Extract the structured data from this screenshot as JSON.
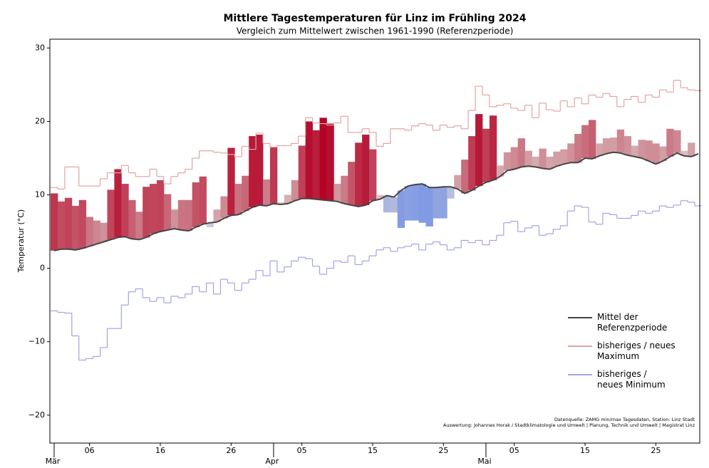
{
  "chart_data": {
    "type": "anomaly-bar",
    "title": "Mittlere Tagestemperaturen für Linz im Frühling 2024",
    "subtitle": "Vergleich zum Mittelwert zwischen 1961-1990 (Referenzperiode)",
    "y_label": "Temperatur (°C)",
    "annotations": [
      "Datenquelle: ZAMG min/max Tagesdaten, Station: Linz Stadt",
      "Auswertung: Johannes Horak / Stadtklimatologie und Umwelt | Planung, Technik und Umwelt | Magistrat Linz"
    ],
    "x": [
      1,
      2,
      3,
      4,
      5,
      6,
      7,
      8,
      9,
      10,
      11,
      12,
      13,
      14,
      15,
      16,
      17,
      18,
      19,
      20,
      21,
      22,
      23,
      24,
      25,
      26,
      27,
      28,
      29,
      30,
      31,
      32,
      33,
      34,
      35,
      36,
      37,
      38,
      39,
      40,
      41,
      42,
      43,
      44,
      45,
      46,
      47,
      48,
      49,
      50,
      51,
      52,
      53,
      54,
      55,
      56,
      57,
      58,
      59,
      60,
      61,
      62,
      63,
      64,
      65,
      66,
      67,
      68,
      69,
      70,
      71,
      72,
      73,
      74,
      75,
      76,
      77,
      78,
      79,
      80,
      81,
      82,
      83,
      84,
      85,
      86,
      87,
      88,
      89,
      90,
      91,
      92
    ],
    "values": [
      10.2,
      9.1,
      9.6,
      8.5,
      9.3,
      7.0,
      6.5,
      6.2,
      10.7,
      13.5,
      11.5,
      9.3,
      7.7,
      11.1,
      11.5,
      12.0,
      10.1,
      8.0,
      9.3,
      9.3,
      11.7,
      12.5,
      5.6,
      8.0,
      9.8,
      16.4,
      11.5,
      12.6,
      18.0,
      18.2,
      12.1,
      16.5,
      9.0,
      10.0,
      12.0,
      16.7,
      20.0,
      18.8,
      20.5,
      19.7,
      11.5,
      12.6,
      14.5,
      17.1,
      18.2,
      16.2,
      10.0,
      7.6,
      7.6,
      5.5,
      6.5,
      6.5,
      6.2,
      5.7,
      6.8,
      6.8,
      9.5,
      12.7,
      14.8,
      18.0,
      21.0,
      19.0,
      20.8,
      14.0,
      15.8,
      16.5,
      17.7,
      16.0,
      15.2,
      16.3,
      15.2,
      15.9,
      16.2,
      17.0,
      18.3,
      19.5,
      20.2,
      17.0,
      17.7,
      17.8,
      18.9,
      18.0,
      16.7,
      17.5,
      17.4,
      17.0,
      16.6,
      19.0,
      18.8,
      16.0,
      17.1,
      15.6
    ],
    "colormap": [
      "#3b6cf0",
      "#ddd8d4",
      "#b40426"
    ],
    "series": [
      {
        "name": "Mittel der\nReferenzperiode",
        "color": "#444444",
        "values": [
          2.4,
          2.6,
          2.6,
          2.5,
          2.7,
          3.0,
          3.3,
          3.6,
          3.9,
          4.2,
          4.3,
          4.0,
          3.9,
          4.2,
          4.7,
          5.0,
          5.2,
          5.4,
          5.2,
          5.1,
          5.6,
          6.0,
          6.2,
          6.3,
          6.8,
          7.2,
          7.3,
          7.8,
          8.3,
          8.6,
          8.5,
          8.8,
          8.7,
          8.8,
          9.2,
          9.5,
          9.5,
          9.4,
          9.3,
          9.2,
          9.1,
          8.8,
          8.6,
          8.4,
          8.6,
          9.2,
          9.4,
          9.9,
          9.7,
          10.6,
          11.2,
          11.4,
          11.5,
          11.0,
          11.0,
          11.1,
          11.1,
          10.8,
          10.2,
          10.6,
          11.2,
          11.7,
          12.0,
          12.5,
          13.3,
          13.5,
          13.8,
          13.9,
          13.8,
          13.6,
          13.5,
          13.9,
          14.2,
          14.4,
          14.4,
          15.0,
          14.9,
          15.3,
          15.6,
          15.8,
          15.7,
          15.4,
          15.2,
          15.0,
          14.6,
          14.2,
          14.6,
          15.2,
          15.7,
          15.3,
          15.2,
          15.6
        ]
      },
      {
        "name": "bisheriges / neues\nMaximum",
        "color": "#e3a3a3",
        "values": [
          11.0,
          10.8,
          13.8,
          13.8,
          11.2,
          11.2,
          11.2,
          12.2,
          13.0,
          13.0,
          14.0,
          13.0,
          12.5,
          12.5,
          13.5,
          12.5,
          11.5,
          12.5,
          13.0,
          13.5,
          15.0,
          16.0,
          16.0,
          15.8,
          15.7,
          15.5,
          15.2,
          16.6,
          16.2,
          18.4,
          17.0,
          16.5,
          16.7,
          16.7,
          17.0,
          18.0,
          20.5,
          19.8,
          19.7,
          19.5,
          19.8,
          20.7,
          18.5,
          18.5,
          19.0,
          18.5,
          16.6,
          17.0,
          19.0,
          19.0,
          18.8,
          19.4,
          19.7,
          19.5,
          18.8,
          19.5,
          19.2,
          19.4,
          19.0,
          21.5,
          24.8,
          23.6,
          22.0,
          22.2,
          22.4,
          21.8,
          21.5,
          22.2,
          20.5,
          22.5,
          21.6,
          21.4,
          22.8,
          22.0,
          23.2,
          22.4,
          23.6,
          23.3,
          23.8,
          23.4,
          22.0,
          23.0,
          23.4,
          22.6,
          23.6,
          23.3,
          24.3,
          24.0,
          25.6,
          24.6,
          24.3,
          24.2
        ]
      },
      {
        "name": "bisheriges /\nneues Minimum",
        "color": "#a3a3e3",
        "values": [
          -5.8,
          -6.0,
          -6.1,
          -9.2,
          -12.5,
          -12.3,
          -12.0,
          -10.8,
          -8.2,
          -8.2,
          -5.0,
          -3.2,
          -2.8,
          -4.0,
          -4.5,
          -4.0,
          -4.7,
          -3.8,
          -4.0,
          -3.5,
          -2.5,
          -3.2,
          -2.0,
          -3.5,
          -1.5,
          -2.0,
          -3.0,
          -2.0,
          -1.5,
          -0.3,
          -1.0,
          1.0,
          -0.5,
          0.2,
          1.0,
          1.5,
          1.3,
          0.3,
          -0.8,
          0.0,
          1.0,
          0.8,
          1.7,
          0.5,
          1.0,
          1.7,
          2.5,
          2.8,
          2.3,
          2.8,
          3.0,
          3.3,
          2.5,
          3.3,
          3.6,
          3.2,
          2.5,
          2.8,
          3.8,
          3.5,
          3.8,
          3.2,
          3.8,
          4.5,
          6.2,
          6.4,
          5.0,
          5.5,
          5.8,
          4.5,
          4.7,
          5.3,
          5.8,
          7.8,
          8.5,
          8.3,
          6.3,
          6.0,
          7.5,
          7.3,
          6.8,
          6.8,
          7.2,
          7.8,
          7.5,
          7.8,
          8.5,
          8.3,
          8.6,
          9.2,
          9.0,
          8.5
        ]
      }
    ],
    "xlim": [
      0.4,
      92.2
    ],
    "xticks": [
      {
        "value": 6,
        "label": "06"
      },
      16,
      26,
      {
        "value": 36,
        "label": "05"
      },
      {
        "value": 46,
        "label": "15"
      },
      {
        "value": 56,
        "label": "25"
      },
      {
        "value": 66,
        "label": "05"
      },
      {
        "value": 76,
        "label": "15"
      },
      {
        "value": 86,
        "label": "25"
      }
    ],
    "month_ticks": [
      {
        "value": 1,
        "label": "Mär"
      },
      {
        "value": 32,
        "label": "Apr"
      },
      {
        "value": 62,
        "label": "Mai"
      }
    ],
    "ylim": [
      -23.8,
      31.2
    ],
    "yticks": [
      {
        "value": -20,
        "label": "−20"
      },
      {
        "value": -10,
        "label": "−10"
      },
      0,
      10,
      20,
      30
    ],
    "legend": "lower right"
  }
}
